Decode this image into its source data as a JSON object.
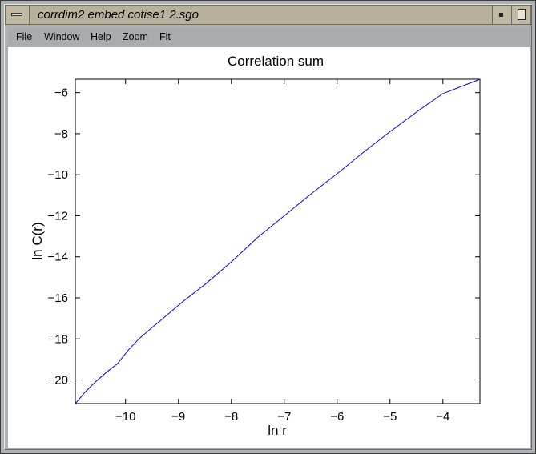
{
  "window": {
    "title": "corrdim2 embed cotise1 2.sgo",
    "sysmenu_icon": "window-menu-icon",
    "minimize_icon": "minimize-icon",
    "maximize_icon": "maximize-icon"
  },
  "menubar": {
    "items": [
      {
        "label": "File"
      },
      {
        "label": "Window"
      },
      {
        "label": "Help"
      },
      {
        "label": "Zoom"
      },
      {
        "label": "Fit"
      }
    ]
  },
  "chart_data": {
    "type": "line",
    "title": "Correlation sum",
    "xlabel": "ln r",
    "ylabel": "ln C(r)",
    "xlim": [
      -10.95,
      -3.3
    ],
    "ylim": [
      -21.15,
      -5.35
    ],
    "xticks": [
      -10,
      -9,
      -8,
      -7,
      -6,
      -5,
      -4
    ],
    "yticks": [
      -20,
      -18,
      -16,
      -14,
      -12,
      -10,
      -8,
      -6
    ],
    "grid": false,
    "series": [
      {
        "color": "#0000ff",
        "x": [
          -10.95,
          -10.75,
          -10.55,
          -10.35,
          -10.15,
          -9.95,
          -9.75,
          -9.5,
          -9.2,
          -8.9,
          -8.5,
          -8.0,
          -7.5,
          -7.0,
          -6.5,
          -6.0,
          -5.5,
          -5.0,
          -4.5,
          -4.0,
          -3.3
        ],
        "y": [
          -21.15,
          -20.55,
          -20.05,
          -19.6,
          -19.2,
          -18.55,
          -18.0,
          -17.45,
          -16.8,
          -16.15,
          -15.35,
          -14.25,
          -13.05,
          -12.0,
          -10.95,
          -9.95,
          -8.9,
          -7.9,
          -6.95,
          -6.05,
          -5.35
        ]
      }
    ]
  }
}
